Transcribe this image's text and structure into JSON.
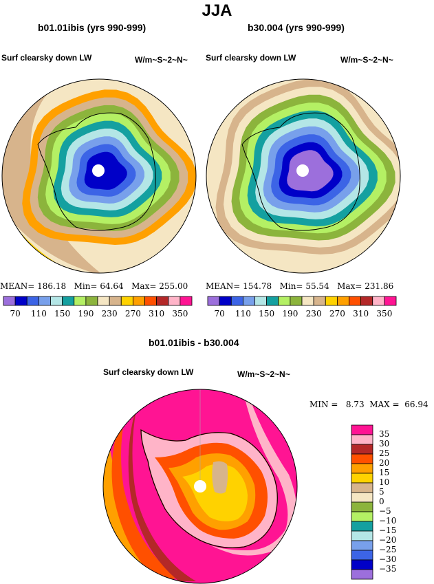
{
  "title": "JJA",
  "panels": [
    {
      "case_title": "b01.01ibis (yrs 990-999)",
      "variable": "Surf clearsky down LW",
      "units": "W/m~S~2~N~",
      "stats": {
        "mean_label": "MEAN=",
        "mean": "186.18",
        "min_label": "Min=",
        "min": "64.64",
        "max_label": "Max=",
        "max": "255.00"
      },
      "ring_levels": [
        270,
        230,
        190,
        170,
        150,
        130,
        110,
        90,
        70
      ]
    },
    {
      "case_title": "b30.004 (yrs 990-999)",
      "variable": "Surf clearsky down LW",
      "units": "W/m~S~2~N~",
      "stats": {
        "mean_label": "MEAN=",
        "mean": "154.78",
        "min_label": "Min=",
        "min": "55.54",
        "max_label": "Max=",
        "max": "231.86"
      },
      "ring_levels": [
        230,
        210,
        190,
        170,
        150,
        130,
        110,
        90,
        70,
        50
      ]
    }
  ],
  "abs_colorbar": {
    "colors": [
      "#9c6fdc",
      "#0000c8",
      "#3c64e6",
      "#78a0eb",
      "#b4e6e6",
      "#14a0a0",
      "#b4f064",
      "#8cb43c",
      "#f5e6c3",
      "#d7b48c",
      "#ffd200",
      "#ffa000",
      "#ff5000",
      "#b42828",
      "#ffb4c8",
      "#ff1493"
    ],
    "tick_labels": [
      "70",
      "110",
      "150",
      "190",
      "230",
      "270",
      "310",
      "350"
    ]
  },
  "difference": {
    "title": "b01.01ibis - b30.004",
    "variable": "Surf clearsky down LW",
    "units": "W/m~S~2~N~",
    "min_label": "MIN =",
    "min": "8.73",
    "max_label": "MAX =",
    "max": "66.94",
    "colorbar": {
      "colors": [
        "#ff1493",
        "#ffb4c8",
        "#b42828",
        "#ff5000",
        "#ffa000",
        "#ffd200",
        "#d7b48c",
        "#f5e6c3",
        "#8cb43c",
        "#b4f064",
        "#14a0a0",
        "#b4e6e6",
        "#78a0eb",
        "#3c64e6",
        "#0000c8",
        "#9c6fdc"
      ],
      "labels": [
        "35",
        "30",
        "25",
        "20",
        "15",
        "10",
        "5",
        "0",
        "−5",
        "−10",
        "−15",
        "−20",
        "−25",
        "−30",
        "−35"
      ]
    }
  },
  "colors": {
    "background": "#ffffff",
    "outline": "#000000"
  }
}
